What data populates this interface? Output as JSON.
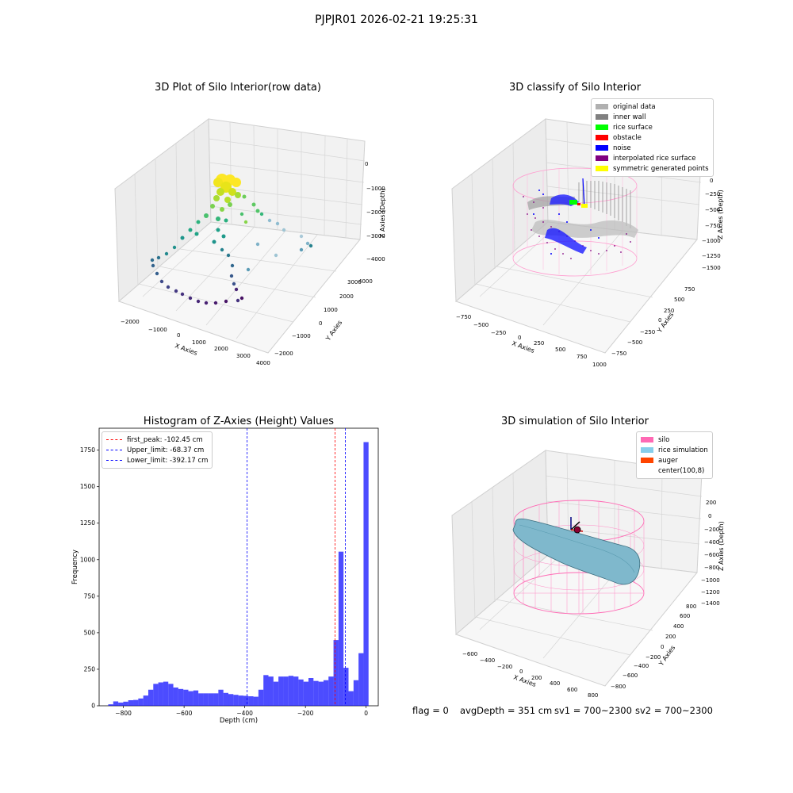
{
  "suptitle": "PJPJR01 2026-02-21 19:25:31",
  "panels": {
    "raw": {
      "title": "3D Plot of Silo Interior(row data)",
      "xlabel": "X Axies",
      "ylabel": "Y Axies",
      "zlabel": "Z Axies (Depth)",
      "xticks": [
        "−2000",
        "−1000",
        "0",
        "1000",
        "2000",
        "3000",
        "4000"
      ],
      "yticks": [
        "−2000",
        "−1000",
        "0",
        "1000",
        "2000",
        "3000",
        "4000"
      ],
      "zticks": [
        "0",
        "−1000",
        "−2000",
        "−3000",
        "−4000"
      ]
    },
    "classify": {
      "title": "3D classify of Silo Interior",
      "xlabel": "X Axies",
      "ylabel": "Y Axies",
      "zlabel": "Z Axies (Depth)",
      "xticks": [
        "−750",
        "−500",
        "−250",
        "0",
        "250",
        "500",
        "750",
        "1000"
      ],
      "yticks": [
        "−750",
        "−500",
        "−250",
        "0",
        "250",
        "500",
        "750"
      ],
      "zticks": [
        "0",
        "−250",
        "−500",
        "−750",
        "−1000",
        "−1250",
        "−1500"
      ],
      "legend": [
        {
          "label": "original data",
          "color": "#b0b0b0"
        },
        {
          "label": "inner wall",
          "color": "#808080"
        },
        {
          "label": "rice surface",
          "color": "#00ff00"
        },
        {
          "label": "obstacle",
          "color": "#ff0000"
        },
        {
          "label": "noise",
          "color": "#0000ff"
        },
        {
          "label": "interpolated rice surface",
          "color": "#800080"
        },
        {
          "label": "symmetric generated points",
          "color": "#ffff00"
        }
      ]
    },
    "simulation": {
      "title": "3D simulation of Silo Interior",
      "xlabel": "X Axies",
      "ylabel": "Y Axies",
      "zlabel": "Z Axies (Depth)",
      "xticks": [
        "−600",
        "−400",
        "−200",
        "0",
        "200",
        "400",
        "600",
        "800"
      ],
      "yticks": [
        "−800",
        "−600",
        "−400",
        "−200",
        "0",
        "200",
        "400",
        "600",
        "800"
      ],
      "zticks": [
        "200",
        "0",
        "−200",
        "−400",
        "−600",
        "−800",
        "−1000",
        "−1200",
        "−1400"
      ],
      "legend": [
        {
          "label": "silo",
          "color": "#ff69b4"
        },
        {
          "label": "rice simulation",
          "color": "#87ceeb"
        },
        {
          "label": "auger",
          "color": "#ff4500"
        },
        {
          "label": "center(100,8)",
          "color": "#ffffff"
        }
      ]
    }
  },
  "chart_data": [
    {
      "type": "histogram",
      "title": "Histogram of Z-Axies (Height) Values",
      "xlabel": "Depth (cm)",
      "ylabel": "Frequency",
      "xlim": [
        -880,
        40
      ],
      "ylim": [
        0,
        1900
      ],
      "xticks": [
        -800,
        -600,
        -400,
        -200,
        0
      ],
      "yticks": [
        0,
        250,
        500,
        750,
        1000,
        1250,
        1500,
        1750
      ],
      "bar_color": "#0000ff",
      "bin_width": 16.5,
      "bin_left": [
        -850,
        -833.5,
        -817,
        -800.5,
        -784,
        -767.5,
        -751,
        -734.5,
        -718,
        -701.5,
        -685,
        -668.5,
        -652,
        -635.5,
        -619,
        -602.5,
        -586,
        -569.5,
        -553,
        -536.5,
        -520,
        -503.5,
        -487,
        -470.5,
        -454,
        -437.5,
        -421,
        -404.5,
        -388,
        -371.5,
        -355,
        -338.5,
        -322,
        -305.5,
        -289,
        -272.5,
        -256,
        -239.5,
        -223,
        -206.5,
        -190,
        -173.5,
        -157,
        -140.5,
        -124,
        -107.5,
        -91,
        -74.5,
        -58,
        -41.5,
        -25,
        -8.5
      ],
      "values": [
        10,
        30,
        22,
        28,
        38,
        40,
        50,
        70,
        110,
        150,
        160,
        165,
        150,
        125,
        115,
        110,
        100,
        105,
        85,
        85,
        85,
        85,
        110,
        88,
        80,
        75,
        70,
        68,
        65,
        62,
        110,
        210,
        200,
        165,
        200,
        200,
        205,
        200,
        180,
        165,
        190,
        170,
        165,
        175,
        200,
        450,
        1055,
        260,
        100,
        175,
        360,
        1805
      ],
      "vlines": [
        {
          "label": "first_peak: -102.45 cm",
          "x": -102.45,
          "color": "#ff0000"
        },
        {
          "label": "Upper_limit: -68.37 cm",
          "x": -68.37,
          "color": "#0000ff"
        },
        {
          "label": "Lower_limit: -392.17 cm",
          "x": -392.17,
          "color": "#0000ff"
        }
      ]
    }
  ],
  "footer": {
    "flag": "flag = 0",
    "avg": "avgDepth = 351 cm",
    "sv1": "sv1 = 700~2300",
    "sv2": "sv2 = 700~2300"
  }
}
